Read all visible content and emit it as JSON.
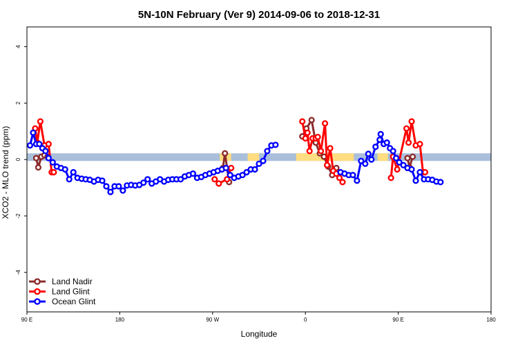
{
  "chart_data": {
    "type": "line",
    "title": "5N-10N February (Ver 9)   2014-09-06 to 2018-12-31",
    "xlabel": "Longitude",
    "ylabel": "XCO2 - MLO trend (ppm)",
    "xlim": [
      90,
      450
    ],
    "ylim": [
      -5.4,
      4.7
    ],
    "x_ticks": [
      {
        "value": 90,
        "label": "90 E"
      },
      {
        "value": 180,
        "label": "180"
      },
      {
        "value": 270,
        "label": "90 W"
      },
      {
        "value": 360,
        "label": "0"
      },
      {
        "value": 450,
        "label": "90 E"
      },
      {
        "value": 540,
        "label": "180"
      }
    ],
    "y_ticks": [
      {
        "value": -4,
        "label": "-4"
      },
      {
        "value": -2,
        "label": "-2"
      },
      {
        "value": 0,
        "label": "0"
      },
      {
        "value": 2,
        "label": "2"
      },
      {
        "value": 4,
        "label": "4"
      }
    ],
    "x_ticks_note": "x axis spans 90E eastward through 180, 90W, 0 to 90E and 180 again",
    "x_domain": [
      90,
      540
    ],
    "band": {
      "ymin": -0.05,
      "ymax": 0.22,
      "ocean_color": "#A9BFDA",
      "land_color": "#FFDD80",
      "land_segments": [
        [
          277,
          288
        ],
        [
          304,
          315
        ],
        [
          351,
          407
        ],
        [
          430,
          440
        ]
      ]
    },
    "legend_position": "bottom-left",
    "grid": false,
    "series": [
      {
        "name": "Land Nadir",
        "color": "#8B2B2B",
        "points": [
          [
            99,
            0.05
          ],
          [
            101,
            -0.28
          ],
          [
            104,
            0.1
          ],
          [
            107,
            0.15
          ],
          [
            110,
            0.1
          ],
          [
            280,
            -0.3
          ],
          [
            282,
            0.22
          ],
          [
            286,
            -0.8
          ],
          [
            357,
            0.82
          ],
          [
            361,
            1.1
          ],
          [
            366,
            1.4
          ],
          [
            370,
            0.6
          ],
          [
            374,
            0.22
          ],
          [
            378,
            0.1
          ],
          [
            382,
            -0.25
          ],
          [
            386,
            -0.55
          ],
          [
            390,
            -0.3
          ],
          [
            459,
            0.05
          ],
          [
            461,
            -0.28
          ],
          [
            464,
            0.1
          ]
        ]
      },
      {
        "name": "Land Glint",
        "color": "#FF0000",
        "points": [
          [
            98,
            1.1
          ],
          [
            100,
            0.6
          ],
          [
            103,
            1.35
          ],
          [
            107,
            0.5
          ],
          [
            111,
            0.55
          ],
          [
            114,
            -0.45
          ],
          [
            116,
            -0.45
          ],
          [
            272,
            -0.7
          ],
          [
            276,
            -0.85
          ],
          [
            284,
            -0.7
          ],
          [
            288,
            -0.3
          ],
          [
            357,
            1.35
          ],
          [
            360,
            0.75
          ],
          [
            362,
            0.95
          ],
          [
            364,
            0.3
          ],
          [
            367,
            0.75
          ],
          [
            370,
            0.75
          ],
          [
            372,
            0.8
          ],
          [
            375,
            0.3
          ],
          [
            379,
            1.28
          ],
          [
            381,
            -0.2
          ],
          [
            384,
            0.4
          ],
          [
            387,
            -0.4
          ],
          [
            390,
            -0.5
          ],
          [
            393,
            -0.65
          ],
          [
            396,
            -0.8
          ],
          [
            443,
            -0.65
          ],
          [
            445,
            0.1
          ],
          [
            449,
            -0.35
          ],
          [
            458,
            1.1
          ],
          [
            460,
            0.6
          ],
          [
            463,
            1.35
          ],
          [
            467,
            0.5
          ],
          [
            471,
            0.55
          ],
          [
            474,
            -0.45
          ],
          [
            476,
            -0.45
          ]
        ]
      },
      {
        "name": "Ocean Glint",
        "color": "#0000FF",
        "points": [
          [
            93,
            0.5
          ],
          [
            96,
            0.95
          ],
          [
            99,
            0.55
          ],
          [
            102,
            0.55
          ],
          [
            105,
            0.4
          ],
          [
            108,
            0.3
          ],
          [
            111,
            0.05
          ],
          [
            115,
            -0.1
          ],
          [
            119,
            -0.25
          ],
          [
            123,
            -0.3
          ],
          [
            127,
            -0.35
          ],
          [
            131,
            -0.7
          ],
          [
            135,
            -0.45
          ],
          [
            139,
            -0.65
          ],
          [
            143,
            -0.68
          ],
          [
            147,
            -0.7
          ],
          [
            151,
            -0.72
          ],
          [
            155,
            -0.78
          ],
          [
            159,
            -0.72
          ],
          [
            163,
            -0.75
          ],
          [
            167,
            -0.95
          ],
          [
            171,
            -1.15
          ],
          [
            175,
            -0.95
          ],
          [
            179,
            -0.95
          ],
          [
            183,
            -1.1
          ],
          [
            187,
            -0.92
          ],
          [
            191,
            -0.9
          ],
          [
            195,
            -0.92
          ],
          [
            199,
            -0.9
          ],
          [
            203,
            -0.82
          ],
          [
            207,
            -0.7
          ],
          [
            211,
            -0.85
          ],
          [
            215,
            -0.78
          ],
          [
            219,
            -0.7
          ],
          [
            223,
            -0.78
          ],
          [
            227,
            -0.72
          ],
          [
            231,
            -0.7
          ],
          [
            235,
            -0.7
          ],
          [
            239,
            -0.7
          ],
          [
            243,
            -0.6
          ],
          [
            247,
            -0.55
          ],
          [
            251,
            -0.5
          ],
          [
            255,
            -0.65
          ],
          [
            259,
            -0.62
          ],
          [
            263,
            -0.55
          ],
          [
            267,
            -0.5
          ],
          [
            271,
            -0.45
          ],
          [
            275,
            -0.4
          ],
          [
            279,
            -0.35
          ],
          [
            283,
            -0.3
          ],
          [
            287,
            -0.55
          ],
          [
            291,
            -0.65
          ],
          [
            295,
            -0.6
          ],
          [
            299,
            -0.55
          ],
          [
            303,
            -0.45
          ],
          [
            307,
            -0.35
          ],
          [
            311,
            -0.35
          ],
          [
            315,
            -0.15
          ],
          [
            319,
            -0.05
          ],
          [
            323,
            0.3
          ],
          [
            327,
            0.5
          ],
          [
            331,
            0.52
          ],
          [
            394,
            -0.45
          ],
          [
            398,
            -0.5
          ],
          [
            402,
            -0.55
          ],
          [
            406,
            -0.55
          ],
          [
            410,
            -0.75
          ],
          [
            414,
            -0.05
          ],
          [
            418,
            -0.15
          ],
          [
            421,
            0.2
          ],
          [
            424,
            0.0
          ],
          [
            428,
            0.45
          ],
          [
            432,
            0.7
          ],
          [
            433,
            0.9
          ],
          [
            436,
            0.55
          ],
          [
            439,
            0.6
          ],
          [
            442,
            0.4
          ],
          [
            445,
            0.3
          ],
          [
            448,
            0.05
          ],
          [
            451,
            -0.1
          ],
          [
            455,
            -0.2
          ],
          [
            459,
            -0.3
          ],
          [
            463,
            -0.35
          ],
          [
            467,
            -0.75
          ],
          [
            471,
            -0.45
          ],
          [
            475,
            -0.7
          ],
          [
            479,
            -0.7
          ],
          [
            483,
            -0.72
          ],
          [
            487,
            -0.78
          ],
          [
            491,
            -0.8
          ]
        ]
      }
    ]
  }
}
